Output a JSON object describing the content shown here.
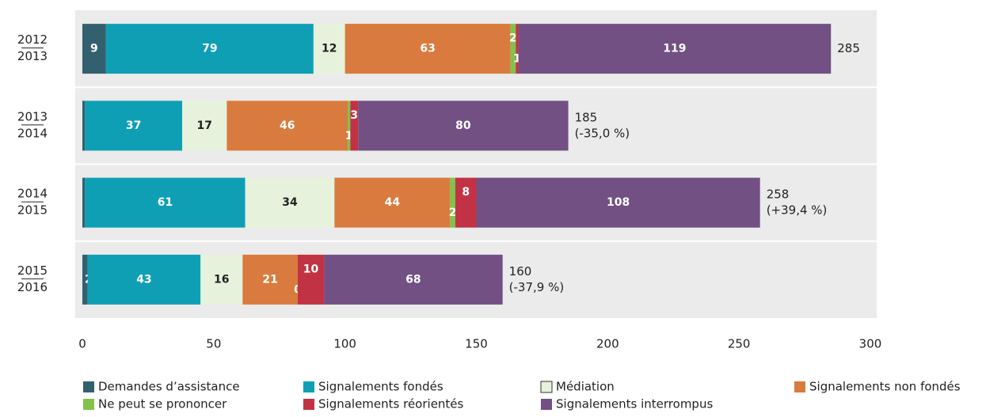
{
  "chart_data": {
    "type": "stacked_barh",
    "categories": [
      [
        "2012",
        "2013"
      ],
      [
        "2013",
        "2014"
      ],
      [
        "2014",
        "2015"
      ],
      [
        "2015",
        "2016"
      ]
    ],
    "series": [
      {
        "name": "Demandes d’assistance",
        "color": "#33606f",
        "values": [
          9,
          1,
          1,
          2
        ]
      },
      {
        "name": "Signalements fondés",
        "color": "#0f9fb5",
        "values": [
          79,
          37,
          61,
          43
        ]
      },
      {
        "name": "Médiation",
        "color": "#e6f2db",
        "values": [
          12,
          17,
          34,
          16
        ]
      },
      {
        "name": "Signalements non fondés",
        "color": "#d97b3e",
        "values": [
          63,
          46,
          44,
          21
        ]
      },
      {
        "name": "Ne peut se prononcer",
        "color": "#80c24b",
        "values": [
          2,
          1,
          2,
          0
        ]
      },
      {
        "name": "Signalements réorientés",
        "color": "#c13344",
        "values": [
          1,
          3,
          8,
          10
        ]
      },
      {
        "name": "Signalements interrompus",
        "color": "#725083",
        "values": [
          119,
          80,
          108,
          68
        ]
      }
    ],
    "totals": [
      285,
      185,
      258,
      160
    ],
    "total_changes": [
      null,
      "(-35,0 %)",
      "(+39,4 %)",
      "(-37,9 %)"
    ],
    "xlim": [
      0,
      300
    ],
    "xticks": [
      0,
      50,
      100,
      150,
      200,
      250,
      300
    ]
  }
}
